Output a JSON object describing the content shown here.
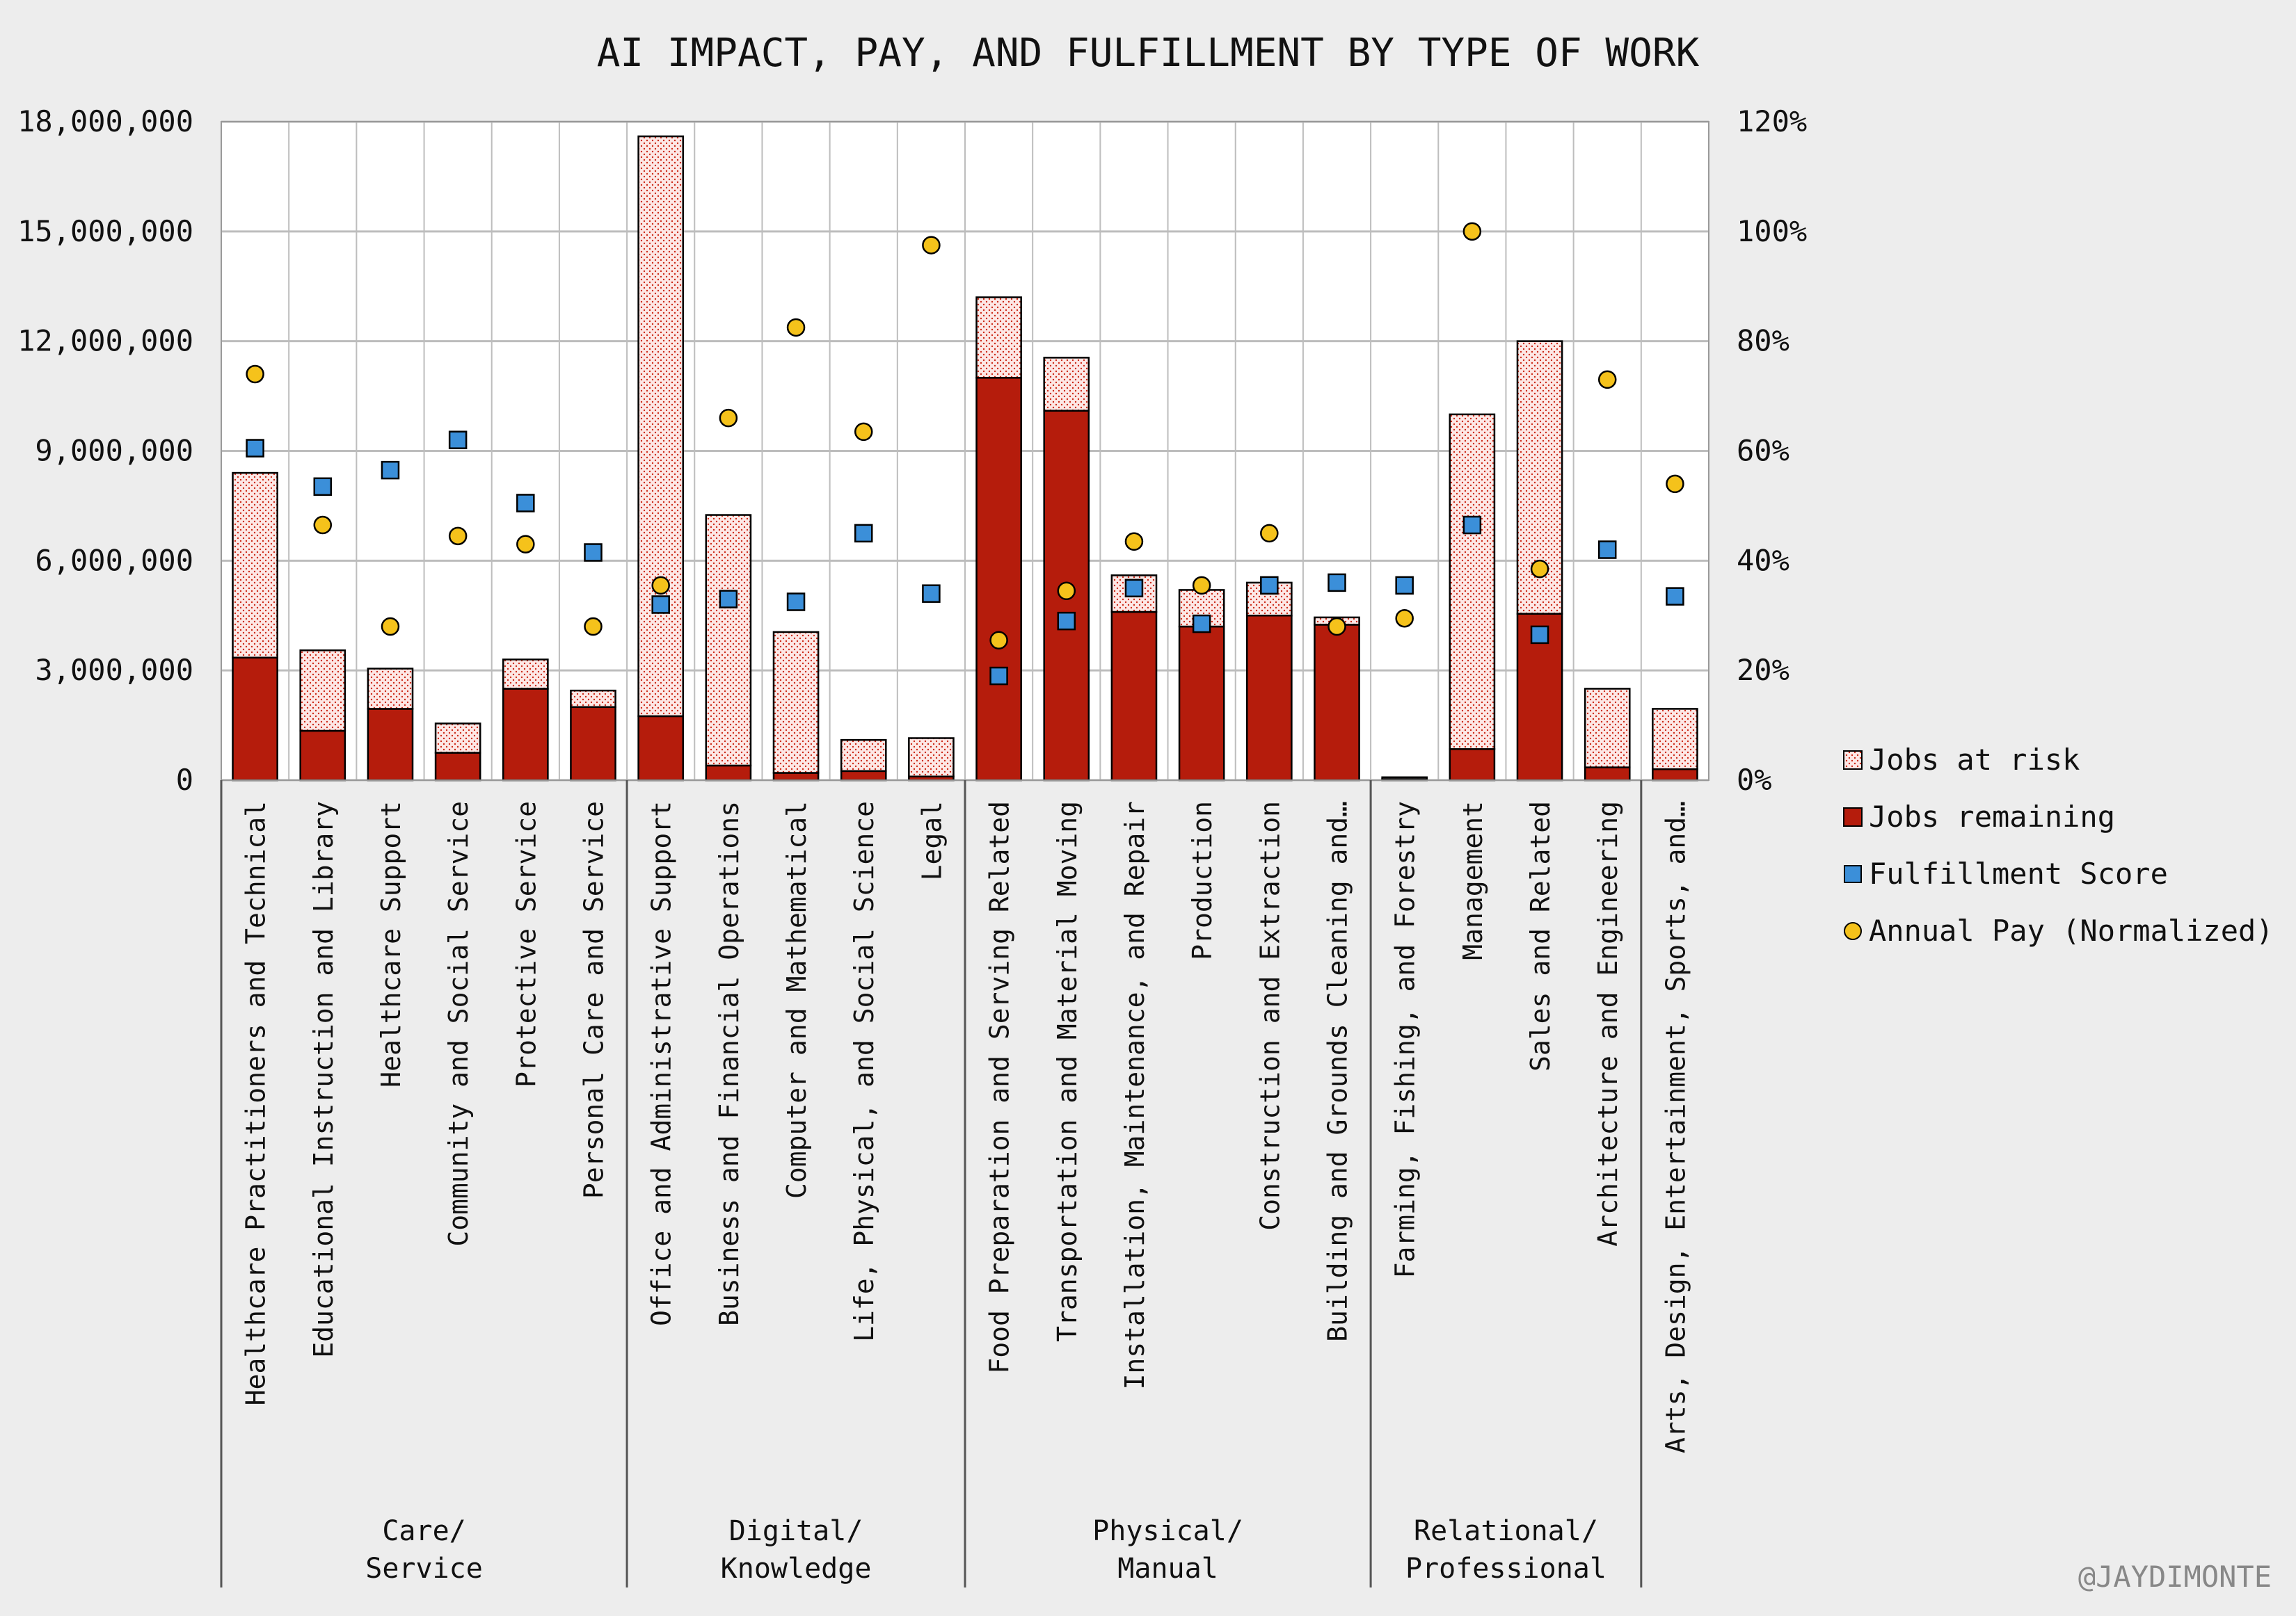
{
  "chart_data": {
    "type": "bar",
    "title": "AI IMPACT, PAY, AND FULFILLMENT BY TYPE OF WORK",
    "ylim": [
      0,
      18000000
    ],
    "y_ticks": [
      "0",
      "3,000,000",
      "6,000,000",
      "9,000,000",
      "12,000,000",
      "15,000,000",
      "18,000,000"
    ],
    "y_tick_values": [
      0,
      3000000,
      6000000,
      9000000,
      12000000,
      15000000,
      18000000
    ],
    "y2lim": [
      0,
      120
    ],
    "y2_ticks": [
      "0%",
      "20%",
      "40%",
      "60%",
      "80%",
      "100%",
      "120%"
    ],
    "y2_tick_values": [
      0,
      20,
      40,
      60,
      80,
      100,
      120
    ],
    "grid": true,
    "legend_position": "right",
    "groups": [
      {
        "label_line1": "Care/",
        "label_line2": "Service",
        "start": 0,
        "end": 5
      },
      {
        "label_line1": "Digital/",
        "label_line2": "Knowledge",
        "start": 6,
        "end": 10
      },
      {
        "label_line1": "Physical/",
        "label_line2": "Manual",
        "start": 11,
        "end": 16
      },
      {
        "label_line1": "Relational/",
        "label_line2": "Professional",
        "start": 17,
        "end": 20
      }
    ],
    "categories": [
      "Healthcare Practitioners and Technical",
      "Educational Instruction and Library",
      "Healthcare Support",
      "Community and Social Service",
      "Protective Service",
      "Personal Care and Service",
      "Office and Administrative Support",
      "Business and Financial Operations",
      "Computer and Mathematical",
      "Life, Physical, and Social Science",
      "Legal",
      "Food Preparation and Serving Related",
      "Transportation and Material Moving",
      "Installation, Maintenance, and Repair",
      "Production",
      "Construction and Extraction",
      "Building and Grounds Cleaning and…",
      "Farming, Fishing, and Forestry",
      "Management",
      "Sales and Related",
      "Architecture and Engineering",
      "Arts, Design, Entertainment, Sports, and…"
    ],
    "series": [
      {
        "name": "Jobs at risk",
        "axis": "left",
        "kind": "stacked-bar",
        "values": [
          5050000,
          2200000,
          1100000,
          800000,
          800000,
          450000,
          15850000,
          6850000,
          3850000,
          850000,
          1050000,
          2200000,
          1450000,
          1000000,
          1000000,
          900000,
          200000,
          50000,
          9150000,
          7450000,
          2150000,
          1650000
        ]
      },
      {
        "name": "Jobs remaining",
        "axis": "left",
        "kind": "stacked-bar",
        "values": [
          3350000,
          1350000,
          1950000,
          750000,
          2500000,
          2000000,
          1750000,
          400000,
          200000,
          250000,
          100000,
          11000000,
          10100000,
          4600000,
          4200000,
          4500000,
          4250000,
          30000,
          850000,
          4550000,
          350000,
          300000
        ]
      },
      {
        "name": "Fulfillment Score",
        "axis": "right",
        "kind": "square-marker",
        "values": [
          60.5,
          53.5,
          56.5,
          62,
          50.5,
          41.5,
          32,
          33,
          32.5,
          45,
          34,
          19,
          29,
          35,
          28.5,
          35.5,
          36,
          35.5,
          46.5,
          26.5,
          42,
          33.5
        ]
      },
      {
        "name": "Annual Pay (Normalized)",
        "axis": "right",
        "kind": "circle-marker",
        "values": [
          74,
          46.5,
          28,
          44.5,
          43,
          28,
          35.5,
          66,
          82.5,
          63.5,
          97.5,
          25.5,
          34.5,
          43.5,
          35.5,
          45,
          28,
          29.5,
          100,
          38.5,
          73,
          54
        ]
      }
    ]
  },
  "colors": {
    "background": "#ededed",
    "plot_background": "#ffffff",
    "jobs_remaining": "#b51c0c",
    "jobs_at_risk_fill": "#fde8e6",
    "jobs_at_risk_dots": "#cc2a18",
    "fulfillment": "#3b8fd9",
    "annual_pay": "#f5c21b",
    "grid": "#bdbdbd",
    "separator": "#666666"
  },
  "watermark": "@JAYDIMONTE"
}
